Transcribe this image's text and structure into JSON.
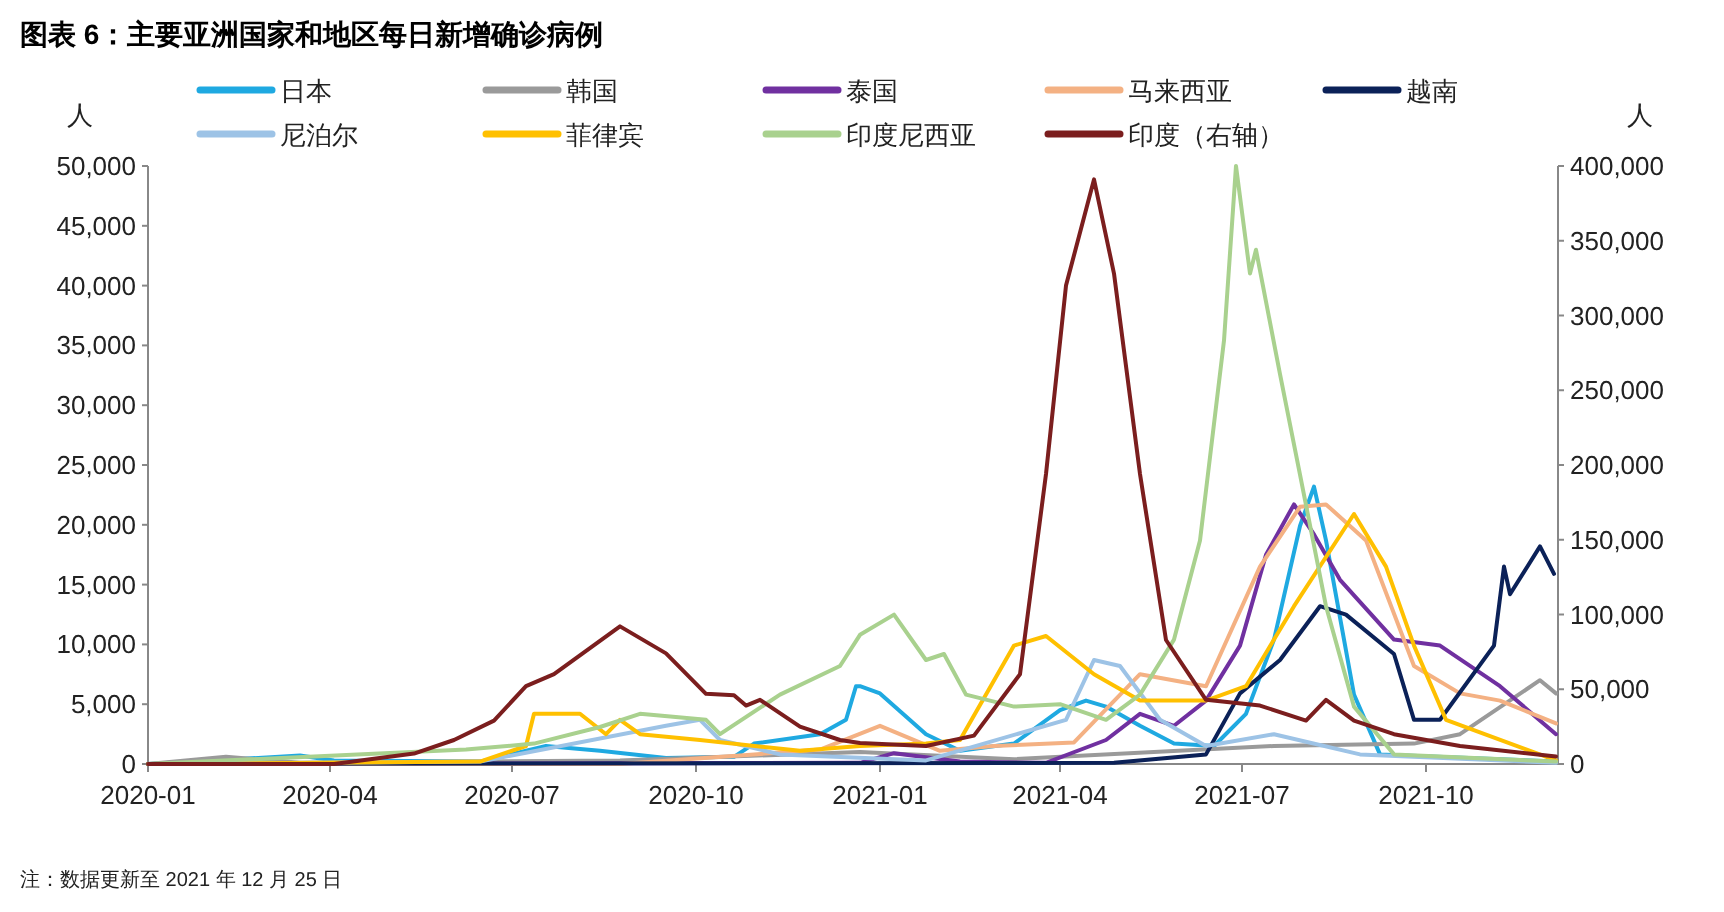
{
  "chart_data": {
    "type": "line",
    "title": "图表 6：主要亚洲国家和地区每日新增确诊病例",
    "ylabel": "人",
    "y2label": "人",
    "annotations": [
      "注：数据更新至 2021 年 12 月 25 日"
    ],
    "xlim": [
      "2020-01-01",
      "2021-12-06"
    ],
    "xticks": [
      "2020-01",
      "2020-04",
      "2020-07",
      "2020-10",
      "2021-01",
      "2021-04",
      "2021-07",
      "2021-10"
    ],
    "ylim": [
      0,
      50000
    ],
    "yticks": [
      0,
      {
        "value": 5000,
        "label": "5,000"
      },
      {
        "value": 10000,
        "label": "10,000"
      },
      {
        "value": 15000,
        "label": "15,000"
      },
      {
        "value": 20000,
        "label": "20,000"
      },
      {
        "value": 25000,
        "label": "25,000"
      },
      {
        "value": 30000,
        "label": "30,000"
      },
      {
        "value": 35000,
        "label": "35,000"
      },
      {
        "value": 40000,
        "label": "40,000"
      },
      {
        "value": 45000,
        "label": "45,000"
      },
      {
        "value": 50000,
        "label": "50,000"
      }
    ],
    "y2lim": [
      0,
      400000
    ],
    "y2ticks": [
      0,
      {
        "value": 50000,
        "label": "50,000"
      },
      {
        "value": 100000,
        "label": "100,000"
      },
      {
        "value": 150000,
        "label": "150,000"
      },
      {
        "value": 200000,
        "label": "200,000"
      },
      {
        "value": 250000,
        "label": "250,000"
      },
      {
        "value": 300000,
        "label": "300,000"
      },
      {
        "value": 350000,
        "label": "350,000"
      },
      {
        "value": 400000,
        "label": "400,000"
      }
    ],
    "grid": false,
    "legend": "top",
    "line_style": "solid",
    "marker": "none",
    "series": [
      {
        "name": "日本",
        "color": "#1fa9e1",
        "x": [
          "2020-01-01",
          "2020-03-17",
          "2020-04-03",
          "2020-06-15",
          "2020-07-18",
          "2020-08-14",
          "2020-09-16",
          "2020-10-20",
          "2020-10-30",
          "2020-12-02",
          "2020-12-15",
          "2020-12-20",
          "2020-12-22",
          "2021-01-01",
          "2021-01-24",
          "2021-02-10",
          "2021-03-09",
          "2021-04-01",
          "2021-04-14",
          "2021-04-24",
          "2021-05-11",
          "2021-05-28",
          "2021-06-17",
          "2021-07-03",
          "2021-07-17",
          "2021-07-30",
          "2021-08-06",
          "2021-08-12",
          "2021-08-26",
          "2021-09-08",
          "2021-12-05"
        ],
        "values": [
          0,
          700,
          300,
          200,
          1500,
          1100,
          500,
          600,
          1700,
          2500,
          3700,
          6500,
          6500,
          5900,
          2500,
          1100,
          1700,
          4500,
          5300,
          4800,
          3200,
          1700,
          1500,
          4200,
          10400,
          19900,
          23200,
          18700,
          5800,
          800,
          200
        ]
      },
      {
        "name": "韩国",
        "color": "#9a9a9a",
        "x": [
          "2020-01-01",
          "2020-02-09",
          "2020-03-17",
          "2020-08-24",
          "2020-12-22",
          "2021-03-09",
          "2021-07-17",
          "2021-09-25",
          "2021-10-18",
          "2021-11-27",
          "2021-12-05"
        ],
        "values": [
          0,
          600,
          100,
          300,
          1000,
          400,
          1500,
          1700,
          2500,
          7000,
          5900
        ]
      },
      {
        "name": "泰国",
        "color": "#7030a0",
        "x": [
          "2020-01-01",
          "2020-12-22",
          "2021-01-08",
          "2021-02-10",
          "2021-03-25",
          "2021-04-24",
          "2021-05-11",
          "2021-05-28",
          "2021-06-13",
          "2021-06-30",
          "2021-07-13",
          "2021-07-27",
          "2021-08-06",
          "2021-08-19",
          "2021-09-15",
          "2021-10-08",
          "2021-11-07",
          "2021-12-05"
        ],
        "values": [
          0,
          100,
          900,
          200,
          100,
          2000,
          4200,
          3200,
          5300,
          9900,
          17500,
          21700,
          19200,
          15400,
          10400,
          9900,
          6500,
          2500
        ]
      },
      {
        "name": "马来西亚",
        "color": "#f4b183",
        "x": [
          "2020-01-01",
          "2020-08-24",
          "2020-10-30",
          "2020-12-02",
          "2021-01-01",
          "2021-01-31",
          "2021-02-27",
          "2021-04-08",
          "2021-05-11",
          "2021-06-13",
          "2021-07-10",
          "2021-07-30",
          "2021-08-12",
          "2021-09-01",
          "2021-09-25",
          "2021-10-18",
          "2021-11-07",
          "2021-12-05"
        ],
        "values": [
          0,
          0,
          800,
          1200,
          3200,
          1100,
          1500,
          1800,
          7500,
          6500,
          16500,
          21500,
          21700,
          18700,
          8200,
          5900,
          5300,
          3400
        ]
      },
      {
        "name": "越南",
        "color": "#0b2158",
        "x": [
          "2020-01-01",
          "2021-04-28",
          "2021-06-13",
          "2021-06-30",
          "2021-07-20",
          "2021-08-09",
          "2021-08-22",
          "2021-09-15",
          "2021-09-25",
          "2021-10-08",
          "2021-11-04",
          "2021-11-09",
          "2021-11-12",
          "2021-11-27",
          "2021-12-04"
        ],
        "values": [
          0,
          100,
          800,
          5900,
          8700,
          13200,
          12500,
          9200,
          3700,
          3700,
          9900,
          16500,
          14200,
          18200,
          15900
        ]
      },
      {
        "name": "尼泊尔",
        "color": "#9dc3e6",
        "x": [
          "2020-01-01",
          "2020-06-15",
          "2020-09-16",
          "2020-10-03",
          "2020-10-13",
          "2020-11-12",
          "2021-01-24",
          "2021-04-04",
          "2021-04-18",
          "2021-05-01",
          "2021-05-21",
          "2021-06-13",
          "2021-07-17",
          "2021-08-29",
          "2021-12-05"
        ],
        "values": [
          0,
          200,
          3200,
          3700,
          2000,
          800,
          300,
          3700,
          8700,
          8200,
          3700,
          1500,
          2500,
          800,
          100
        ]
      },
      {
        "name": "菲律宾",
        "color": "#ffc000",
        "x": [
          "2020-01-01",
          "2020-06-15",
          "2020-07-08",
          "2020-07-12",
          "2020-08-04",
          "2020-08-17",
          "2020-08-24",
          "2020-09-03",
          "2020-10-03",
          "2020-11-22",
          "2020-12-22",
          "2021-01-24",
          "2021-02-10",
          "2021-03-09",
          "2021-03-25",
          "2021-04-18",
          "2021-05-11",
          "2021-06-13",
          "2021-07-03",
          "2021-07-27",
          "2021-08-26",
          "2021-09-11",
          "2021-09-25",
          "2021-10-11",
          "2021-12-05"
        ],
        "values": [
          0,
          200,
          1500,
          4200,
          4200,
          2500,
          3700,
          2500,
          2000,
          1100,
          1500,
          1700,
          2000,
          9900,
          10700,
          7500,
          5300,
          5300,
          6500,
          13200,
          20900,
          16500,
          9900,
          3700,
          300
        ]
      },
      {
        "name": "印度尼西亚",
        "color": "#a9d18e",
        "x": [
          "2020-01-01",
          "2020-06-08",
          "2020-07-12",
          "2020-08-14",
          "2020-09-03",
          "2020-10-06",
          "2020-10-13",
          "2020-11-12",
          "2020-12-12",
          "2020-12-22",
          "2021-01-08",
          "2021-01-24",
          "2021-02-02",
          "2021-02-13",
          "2021-03-09",
          "2021-04-01",
          "2021-04-24",
          "2021-05-11",
          "2021-05-28",
          "2021-06-10",
          "2021-06-22",
          "2021-06-28",
          "2021-07-05",
          "2021-07-08",
          "2021-07-20",
          "2021-07-30",
          "2021-08-12",
          "2021-08-26",
          "2021-09-15",
          "2021-12-05"
        ],
        "values": [
          0,
          1200,
          1700,
          3100,
          4200,
          3700,
          2500,
          5800,
          8200,
          10800,
          12500,
          8700,
          9200,
          5800,
          4800,
          5000,
          3700,
          5800,
          10400,
          18700,
          35400,
          50000,
          41000,
          43000,
          32600,
          24200,
          13200,
          4800,
          800,
          200
        ]
      },
      {
        "name": "印度（右轴）",
        "color": "#7b1e1e",
        "axis": "y2",
        "x": [
          "2020-01-01",
          "2020-04-03",
          "2020-05-13",
          "2020-06-02",
          "2020-06-22",
          "2020-07-08",
          "2020-07-22",
          "2020-08-24",
          "2020-09-16",
          "2020-10-06",
          "2020-10-20",
          "2020-10-26",
          "2020-11-02",
          "2020-11-22",
          "2020-12-12",
          "2020-12-22",
          "2021-01-24",
          "2021-02-17",
          "2021-03-12",
          "2021-03-25",
          "2021-04-04",
          "2021-04-18",
          "2021-04-28",
          "2021-05-11",
          "2021-05-24",
          "2021-06-13",
          "2021-07-10",
          "2021-08-02",
          "2021-08-12",
          "2021-08-26",
          "2021-09-15",
          "2021-10-18",
          "2021-12-05"
        ],
        "values": [
          0,
          0,
          7000,
          16000,
          29000,
          52000,
          60000,
          92000,
          74000,
          47000,
          46000,
          39000,
          43000,
          25000,
          16000,
          14000,
          12000,
          19000,
          60000,
          194000,
          320000,
          391000,
          328000,
          194000,
          83000,
          43000,
          39000,
          29000,
          43000,
          29000,
          20000,
          12000,
          5000
        ]
      }
    ]
  }
}
